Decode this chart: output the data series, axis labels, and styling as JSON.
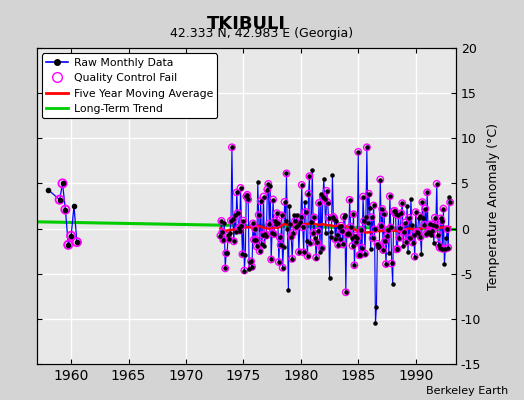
{
  "title": "TKIBULI",
  "subtitle": "42.333 N, 42.983 E (Georgia)",
  "ylabel": "Temperature Anomaly (°C)",
  "credit": "Berkeley Earth",
  "xlim": [
    1957,
    1993.5
  ],
  "ylim": [
    -15,
    20
  ],
  "yticks": [
    -15,
    -10,
    -5,
    0,
    5,
    10,
    15,
    20
  ],
  "xticks": [
    1960,
    1965,
    1970,
    1975,
    1980,
    1985,
    1990
  ],
  "fig_bg": "#d4d4d4",
  "ax_bg": "#e8e8e8",
  "grid_color": "#ffffff",
  "raw_color": "#0000ff",
  "dot_color": "#000000",
  "qc_color": "#ff00ff",
  "ma_color": "#ff0000",
  "trend_color": "#00cc00"
}
